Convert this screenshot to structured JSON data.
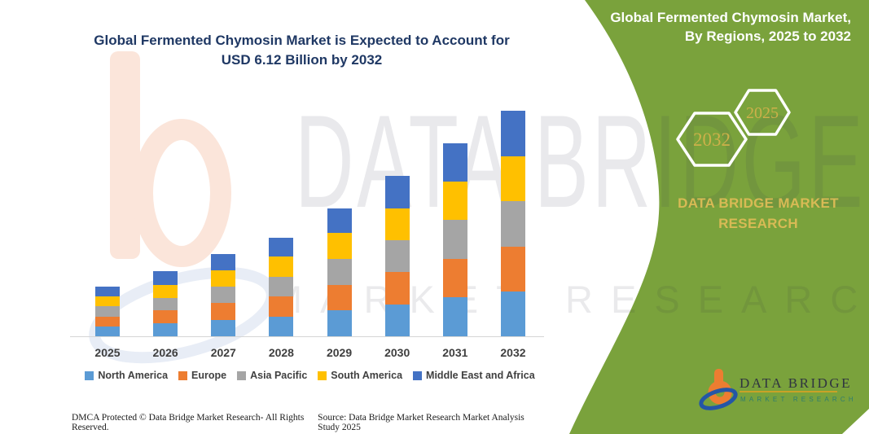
{
  "left_section": {
    "title_line1": "Global Fermented Chymosin Market is Expected to Account for",
    "title_line2": "USD 6.12 Billion by 2032",
    "footer": {
      "dmca": "DMCA Protected © Data Bridge Market Research-  All Rights Reserved.",
      "source": "Source: Data Bridge Market Research  Market Analysis Study 2025"
    }
  },
  "right_panel": {
    "title_line1": "Global Fermented Chymosin Market,",
    "title_line2": "By Regions, 2025 to 2032",
    "hexagons": [
      {
        "label": "2032"
      },
      {
        "label": "2025"
      }
    ],
    "brand_line1": "DATA BRIDGE MARKET",
    "brand_line2": "RESEARCH",
    "colors": {
      "panel_green": "#7AA23C",
      "accent_gold": "#CDB04A"
    }
  },
  "logo": {
    "wordmark": "DATA BRIDGE",
    "subtitle": "MARKET RESEARCH"
  },
  "watermark": {
    "big_text": "DATA BRIDGE",
    "spaced_text": "MARKET RESEARCH"
  },
  "chart_data": {
    "type": "bar",
    "stacked": true,
    "unit": "USD Billion",
    "title": "Global Fermented Chymosin Market, By Regions, 2025 to 2032",
    "xlabel": "",
    "ylabel": "",
    "grid": false,
    "legend_position": "bottom",
    "categories": [
      "2025",
      "2026",
      "2027",
      "2028",
      "2029",
      "2030",
      "2031",
      "2032"
    ],
    "series": [
      {
        "name": "North America",
        "color": "#5B9BD5",
        "values": [
          0.27,
          0.35,
          0.45,
          0.54,
          0.7,
          0.87,
          1.05,
          1.22
        ]
      },
      {
        "name": "Europe",
        "color": "#ED7D31",
        "values": [
          0.27,
          0.35,
          0.45,
          0.54,
          0.7,
          0.87,
          1.05,
          1.22
        ]
      },
      {
        "name": "Asia Pacific",
        "color": "#A5A5A5",
        "values": [
          0.27,
          0.35,
          0.45,
          0.54,
          0.7,
          0.87,
          1.05,
          1.22
        ]
      },
      {
        "name": "South America",
        "color": "#FFC000",
        "values": [
          0.27,
          0.35,
          0.45,
          0.54,
          0.7,
          0.87,
          1.05,
          1.22
        ]
      },
      {
        "name": "Middle East and Africa",
        "color": "#4472C4",
        "values": [
          0.27,
          0.37,
          0.44,
          0.52,
          0.68,
          0.87,
          1.04,
          1.24
        ]
      }
    ],
    "totals": [
      1.35,
      1.77,
      2.24,
      2.68,
      3.48,
      4.35,
      5.24,
      6.12
    ],
    "ylim": [
      0,
      6.5
    ]
  }
}
